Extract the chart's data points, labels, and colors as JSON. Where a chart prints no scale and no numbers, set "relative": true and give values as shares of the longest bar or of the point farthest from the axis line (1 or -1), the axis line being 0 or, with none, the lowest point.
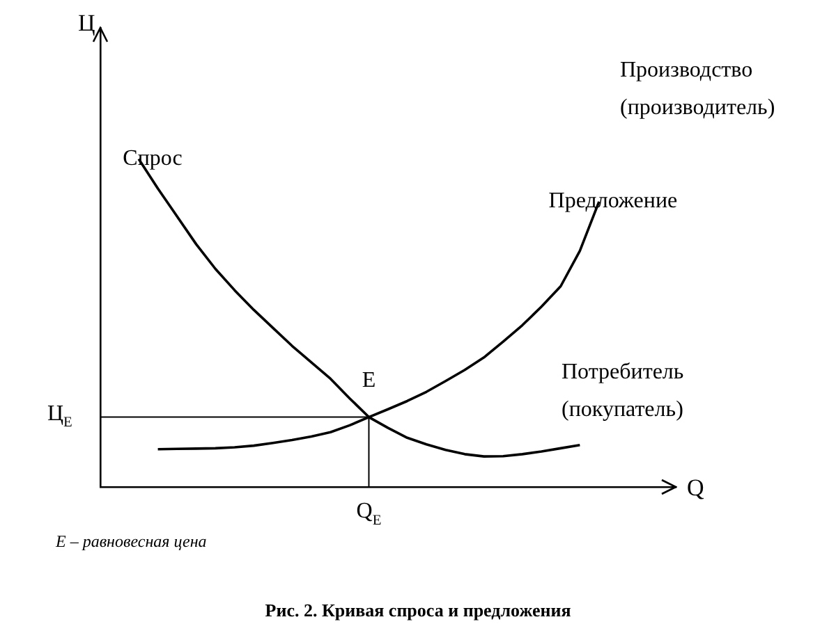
{
  "chart_data": {
    "type": "line",
    "relative": true,
    "title": "Рис. 2. Кривая спроса и предложения",
    "xlabel": "Q",
    "grid": false,
    "legend": false,
    "marker": "none",
    "line_style": "solid",
    "categories": [
      null,
      null,
      null,
      null,
      null,
      null,
      null,
      null,
      null,
      null,
      null,
      null,
      null,
      null,
      null,
      null,
      null,
      null,
      null,
      null,
      null,
      null,
      null,
      null,
      null,
      null,
      null,
      null,
      null,
      null,
      null
    ],
    "series": [
      {
        "name": "Спрос",
        "color": "#000000",
        "values": [
          null,
          null,
          1.0,
          0.91,
          0.825,
          0.74,
          0.665,
          0.6,
          0.54,
          0.485,
          0.43,
          0.38,
          0.33,
          0.27,
          0.213,
          0.18,
          0.15,
          0.13,
          0.113,
          0.1,
          0.093,
          0.094,
          0.1,
          0.108,
          0.118,
          0.128,
          null,
          null,
          null,
          null,
          null
        ]
      },
      {
        "name": "Предложение",
        "color": "#000000",
        "values": [
          null,
          null,
          null,
          0.115,
          0.116,
          0.117,
          0.118,
          0.121,
          0.126,
          0.134,
          0.143,
          0.154,
          0.167,
          0.188,
          0.213,
          0.237,
          0.262,
          0.29,
          0.323,
          0.357,
          0.395,
          0.443,
          0.493,
          0.55,
          0.612,
          0.72,
          0.87,
          null,
          null,
          null,
          null
        ]
      },
      {
        "color": "#000000",
        "values": [
          0.213,
          0.213,
          0.213,
          0.213,
          0.213,
          0.213,
          0.213,
          0.213,
          0.213,
          0.213,
          0.213,
          0.213,
          0.213,
          0.213,
          0.213,
          null,
          null,
          null,
          null,
          null,
          null,
          null,
          null,
          null,
          null,
          null,
          null,
          null,
          null,
          null,
          null
        ]
      }
    ],
    "annotations": [
      "E",
      "Ц$_{E}$",
      "Q$_{E}$",
      "Производство\n(производитель)",
      "Потребитель\n(покупатель)",
      "E – равновесная цена",
      "Ц"
    ]
  }
}
